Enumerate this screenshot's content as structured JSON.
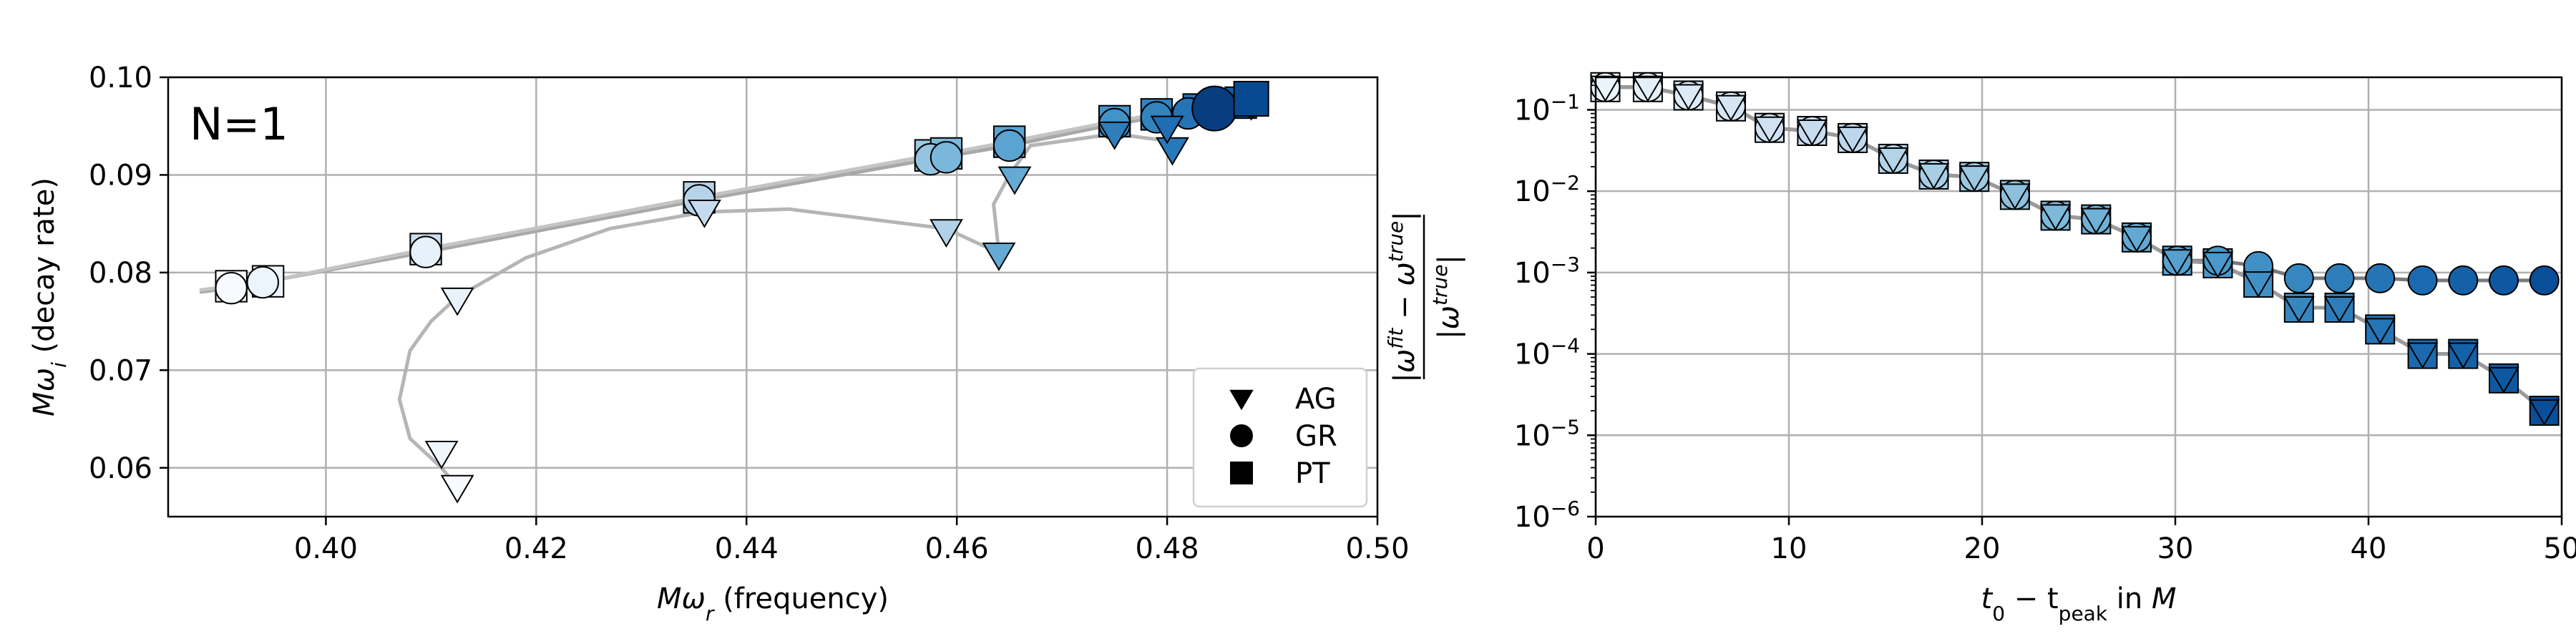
{
  "chart_data": [
    {
      "type": "scatter",
      "title": "",
      "annotation": "N=1",
      "xlabel_main": "Mω",
      "xlabel_sub": "r",
      "xlabel_suffix": " (frequency)",
      "ylabel_main": "Mω",
      "ylabel_sub": "i",
      "ylabel_suffix": " (decay rate)",
      "xlim": [
        0.385,
        0.5
      ],
      "ylim": [
        0.055,
        0.1
      ],
      "xticks": [
        0.4,
        0.42,
        0.44,
        0.46,
        0.48,
        0.5
      ],
      "xtick_labels": [
        "0.40",
        "0.42",
        "0.44",
        "0.46",
        "0.48",
        "0.50"
      ],
      "yticks": [
        0.06,
        0.07,
        0.08,
        0.09,
        0.1
      ],
      "ytick_labels": [
        "0.06",
        "0.07",
        "0.08",
        "0.09",
        "0.10"
      ],
      "grid": true,
      "legend_position": "bottom-right",
      "legend": [
        {
          "marker": "triangle-down",
          "label": "AG"
        },
        {
          "marker": "circle",
          "label": "GR"
        },
        {
          "marker": "square",
          "label": "PT"
        }
      ],
      "lines": [
        {
          "name": "AG",
          "color": "#b5b5b5",
          "points": [
            [
              0.4125,
              0.058
            ],
            [
              0.411,
              0.06
            ],
            [
              0.408,
              0.063
            ],
            [
              0.407,
              0.067
            ],
            [
              0.408,
              0.072
            ],
            [
              0.41,
              0.075
            ],
            [
              0.4125,
              0.0775
            ],
            [
              0.419,
              0.0815
            ],
            [
              0.427,
              0.0845
            ],
            [
              0.436,
              0.0862
            ],
            [
              0.444,
              0.0865
            ],
            [
              0.459,
              0.0845
            ],
            [
              0.464,
              0.082
            ],
            [
              0.4635,
              0.087
            ],
            [
              0.465,
              0.09
            ],
            [
              0.467,
              0.093
            ],
            [
              0.475,
              0.0942
            ],
            [
              0.48,
              0.0935
            ],
            [
              0.481,
              0.0955
            ],
            [
              0.485,
              0.097
            ]
          ]
        },
        {
          "name": "GR",
          "color": "#a8a8a8",
          "points": [
            [
              0.388,
              0.078
            ],
            [
              0.391,
              0.0784
            ],
            [
              0.394,
              0.079
            ],
            [
              0.4095,
              0.0821
            ],
            [
              0.4355,
              0.0874
            ],
            [
              0.4575,
              0.0916
            ],
            [
              0.459,
              0.0919
            ],
            [
              0.465,
              0.093
            ],
            [
              0.475,
              0.0952
            ],
            [
              0.479,
              0.0959
            ],
            [
              0.482,
              0.0963
            ],
            [
              0.484,
              0.0967
            ],
            [
              0.486,
              0.097
            ]
          ]
        },
        {
          "name": "PT",
          "color": "#c4c4c4",
          "points": [
            [
              0.388,
              0.0782
            ],
            [
              0.391,
              0.0786
            ],
            [
              0.3945,
              0.0791
            ],
            [
              0.4095,
              0.0824
            ],
            [
              0.4355,
              0.0877
            ],
            [
              0.4575,
              0.092
            ],
            [
              0.459,
              0.0922
            ],
            [
              0.465,
              0.0934
            ],
            [
              0.475,
              0.0955
            ],
            [
              0.479,
              0.0962
            ],
            [
              0.483,
              0.0967
            ],
            [
              0.487,
              0.0974
            ],
            [
              0.488,
              0.0978
            ]
          ]
        }
      ],
      "series": [
        {
          "name": "PT",
          "marker": "square",
          "size": 28,
          "points": [
            [
              0.391,
              0.0786,
              0.0
            ],
            [
              0.3945,
              0.0791,
              0.05
            ],
            [
              0.4095,
              0.0824,
              0.22
            ],
            [
              0.4355,
              0.0877,
              0.3
            ],
            [
              0.4575,
              0.092,
              0.38
            ],
            [
              0.459,
              0.0922,
              0.45
            ],
            [
              0.465,
              0.0934,
              0.55
            ],
            [
              0.475,
              0.0955,
              0.62
            ],
            [
              0.479,
              0.0962,
              0.68
            ],
            [
              0.483,
              0.0967,
              0.74
            ],
            [
              0.487,
              0.0974,
              0.82
            ],
            [
              0.488,
              0.0978,
              0.88
            ]
          ]
        },
        {
          "name": "GR",
          "marker": "circle",
          "size": 28,
          "points": [
            [
              0.391,
              0.0784,
              0.0
            ],
            [
              0.394,
              0.079,
              0.05
            ],
            [
              0.4095,
              0.0821,
              0.08
            ],
            [
              0.4355,
              0.0874,
              0.3
            ],
            [
              0.4575,
              0.0916,
              0.4
            ],
            [
              0.459,
              0.0918,
              0.46
            ],
            [
              0.465,
              0.093,
              0.55
            ],
            [
              0.475,
              0.0952,
              0.62
            ],
            [
              0.479,
              0.0959,
              0.68
            ],
            [
              0.482,
              0.0963,
              0.74
            ],
            [
              0.484,
              0.0967,
              0.8
            ],
            [
              0.485,
              0.0969,
              0.86
            ],
            [
              0.4845,
              0.0968,
              0.95
            ]
          ]
        },
        {
          "name": "AG",
          "marker": "triangle-down",
          "size": 28,
          "points": [
            [
              0.4125,
              0.058,
              0.0
            ],
            [
              0.411,
              0.0615,
              0.04
            ],
            [
              0.4125,
              0.0772,
              0.07
            ],
            [
              0.436,
              0.0862,
              0.25
            ],
            [
              0.459,
              0.0842,
              0.32
            ],
            [
              0.464,
              0.0818,
              0.52
            ],
            [
              0.4655,
              0.0896,
              0.52
            ],
            [
              0.475,
              0.0942,
              0.7
            ],
            [
              0.4805,
              0.0926,
              0.72
            ],
            [
              0.48,
              0.0948,
              0.76
            ],
            [
              0.485,
              0.0968,
              0.84
            ],
            [
              0.488,
              0.0972,
              0.9
            ]
          ]
        }
      ]
    },
    {
      "type": "line",
      "title": "",
      "xlabel_parts": [
        "t",
        "0",
        " − t",
        "peak",
        " in M"
      ],
      "ylabel_top": "|ω^fit − ω^true|",
      "ylabel_bottom": "|ω^true|",
      "ylabel_parts": {
        "num": [
          "|ω",
          "fit",
          " − ω",
          "true",
          "|"
        ],
        "den": [
          "|ω",
          "true",
          "|"
        ]
      },
      "xlim": [
        0,
        50
      ],
      "ylim_log10": [
        -6,
        -0.6
      ],
      "yscale": "log",
      "xticks": [
        0,
        10,
        20,
        30,
        40,
        50
      ],
      "xtick_labels": [
        "0",
        "10",
        "20",
        "30",
        "40",
        "50"
      ],
      "yticks_exp": [
        -6,
        -5,
        -4,
        -3,
        -2,
        -1
      ],
      "ytick_base": "10",
      "ytick_exps": [
        "−6",
        "−5",
        "−4",
        "−3",
        "−2",
        "−1"
      ],
      "grid": true,
      "series": [
        {
          "name": "AG",
          "marker": "triangle-down",
          "color": "#5a5a5a",
          "x": [
            0.5,
            2.7,
            4.8,
            7.0,
            9.0,
            11.2,
            13.3,
            15.4,
            17.5,
            19.6,
            21.7,
            23.8,
            25.9,
            28.0,
            30.1,
            32.2,
            34.3,
            36.4,
            38.5,
            40.6,
            42.8,
            44.9,
            47.0,
            49.1
          ],
          "y": [
            0.19,
            0.19,
            0.15,
            0.11,
            0.06,
            0.055,
            0.045,
            0.025,
            0.016,
            0.015,
            0.009,
            0.005,
            0.0045,
            0.0027,
            0.0014,
            0.0013,
            0.00075,
            0.00037,
            0.00037,
            0.0002,
            0.0001,
            0.0001,
            5e-05,
            2e-05
          ]
        },
        {
          "name": "GR",
          "marker": "circle",
          "color": "#7a7a7a",
          "x": [
            0.5,
            2.7,
            4.8,
            7.0,
            9.0,
            11.2,
            13.3,
            15.4,
            17.5,
            19.6,
            21.7,
            23.8,
            25.9,
            28.0,
            30.1,
            32.2,
            34.3,
            36.4,
            38.5,
            40.6,
            42.8,
            44.9,
            47.0,
            49.1
          ],
          "y": [
            0.19,
            0.19,
            0.15,
            0.11,
            0.06,
            0.055,
            0.045,
            0.025,
            0.016,
            0.015,
            0.009,
            0.005,
            0.0045,
            0.0027,
            0.0014,
            0.0014,
            0.0012,
            0.00085,
            0.00085,
            0.00085,
            0.0008,
            0.0008,
            0.0008,
            0.0008
          ]
        },
        {
          "name": "PT",
          "marker": "square",
          "color": "#9a9a9a",
          "x": [
            0.5,
            2.7,
            4.8,
            7.0,
            9.0,
            11.2,
            13.3,
            15.4,
            17.5,
            19.6,
            21.7,
            23.8,
            25.9,
            28.0,
            30.1,
            32.2,
            34.3,
            36.4,
            38.5,
            40.6,
            42.8,
            44.9,
            47.0,
            49.1
          ],
          "y": [
            0.19,
            0.19,
            0.15,
            0.11,
            0.06,
            0.055,
            0.045,
            0.025,
            0.016,
            0.015,
            0.009,
            0.005,
            0.0045,
            0.0027,
            0.0014,
            0.0013,
            0.00075,
            0.00037,
            0.00037,
            0.0002,
            0.0001,
            0.0001,
            5e-05,
            2e-05
          ]
        }
      ]
    }
  ]
}
